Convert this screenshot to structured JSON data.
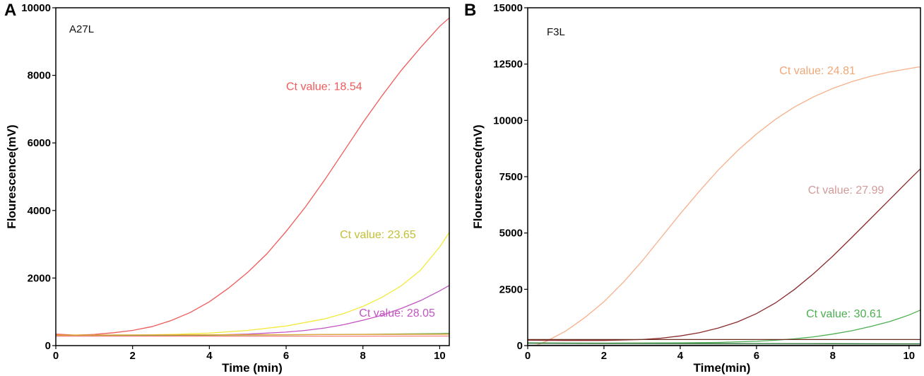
{
  "chart_data": [
    {
      "type": "line",
      "panel_label": "A",
      "tag": "A27L",
      "xlabel": "Time (min)",
      "ylabel": "Flourescence(mV)",
      "xlim": [
        0,
        10.25
      ],
      "ylim": [
        0,
        10000
      ],
      "xticks": [
        0,
        2,
        4,
        6,
        8,
        10
      ],
      "yticks": [
        0,
        2000,
        4000,
        6000,
        8000,
        10000
      ],
      "series": [
        {
          "name": "red",
          "color": "#f05a5a",
          "x": [
            0,
            0.5,
            1,
            1.5,
            2,
            2.5,
            3,
            3.5,
            4,
            4.5,
            5,
            5.5,
            6,
            6.5,
            7,
            7.5,
            8,
            8.5,
            9,
            9.5,
            10,
            10.25
          ],
          "y": [
            340,
            310,
            330,
            380,
            450,
            560,
            740,
            980,
            1300,
            1700,
            2170,
            2720,
            3380,
            4100,
            4900,
            5750,
            6600,
            7400,
            8150,
            8820,
            9450,
            9700
          ]
        },
        {
          "name": "yellow",
          "color": "#f2ea3c",
          "x": [
            0,
            1,
            2,
            3,
            4,
            5,
            6,
            7,
            7.5,
            8,
            8.5,
            9,
            9.5,
            10,
            10.25
          ],
          "y": [
            300,
            300,
            310,
            330,
            370,
            450,
            580,
            790,
            950,
            1160,
            1430,
            1770,
            2230,
            2920,
            3350
          ]
        },
        {
          "name": "purple",
          "color": "#c354c3",
          "x": [
            0,
            2,
            3,
            4,
            5,
            5.5,
            6,
            6.5,
            7,
            7.5,
            8,
            8.5,
            9,
            9.5,
            10,
            10.25
          ],
          "y": [
            290,
            290,
            300,
            310,
            340,
            370,
            400,
            450,
            520,
            620,
            750,
            900,
            1100,
            1330,
            1620,
            1780
          ]
        },
        {
          "name": "green",
          "color": "#5cab3c",
          "x": [
            0,
            2,
            4,
            6,
            8,
            10,
            10.25
          ],
          "y": [
            300,
            305,
            310,
            320,
            335,
            355,
            365
          ]
        },
        {
          "name": "orange",
          "color": "#e8a23a",
          "x": [
            0,
            2,
            4,
            6,
            8,
            10,
            10.25
          ],
          "y": [
            310,
            315,
            320,
            325,
            330,
            335,
            335
          ]
        },
        {
          "name": "pink",
          "color": "#f08080",
          "x": [
            0,
            2,
            4,
            6,
            8,
            10,
            10.25
          ],
          "y": [
            280,
            280,
            280,
            280,
            280,
            282,
            282
          ]
        }
      ],
      "annotations": [
        {
          "text": "Ct value: 18.54",
          "color": "#f05a5a",
          "x": 6.0,
          "y": 7560
        },
        {
          "text": "Ct value: 23.65",
          "color": "#c3bf34",
          "x": 7.4,
          "y": 3180
        },
        {
          "text": "Ct value: 28.05",
          "color": "#c354c3",
          "x": 7.9,
          "y": 860
        }
      ]
    },
    {
      "type": "line",
      "panel_label": "B",
      "tag": "F3L",
      "xlabel": "Time(min)",
      "ylabel": "Flourescence(mV)",
      "xlim": [
        0,
        10.3
      ],
      "ylim": [
        0,
        15000
      ],
      "xticks": [
        0,
        2,
        4,
        6,
        8,
        10
      ],
      "yticks": [
        0,
        2500,
        5000,
        7500,
        10000,
        12500,
        15000
      ],
      "series": [
        {
          "name": "salmon",
          "color": "#f7b08a",
          "x": [
            0.2,
            0.5,
            1,
            1.5,
            2,
            2.5,
            3,
            3.5,
            4,
            4.5,
            5,
            5.5,
            6,
            6.5,
            7,
            7.5,
            8,
            8.5,
            9,
            9.5,
            10,
            10.3
          ],
          "y": [
            0,
            200,
            650,
            1250,
            1950,
            2800,
            3750,
            4800,
            5850,
            6850,
            7800,
            8650,
            9400,
            10050,
            10600,
            11050,
            11420,
            11720,
            11960,
            12150,
            12300,
            12380
          ]
        },
        {
          "name": "maroon",
          "color": "#8b2a2a",
          "x": [
            0,
            1,
            2,
            3,
            3.5,
            4,
            4.5,
            5,
            5.5,
            6,
            6.5,
            7,
            7.5,
            8,
            8.5,
            9,
            9.5,
            10,
            10.3
          ],
          "y": [
            240,
            230,
            230,
            270,
            330,
            430,
            570,
            780,
            1050,
            1420,
            1900,
            2500,
            3200,
            3970,
            4800,
            5650,
            6500,
            7350,
            7850
          ]
        },
        {
          "name": "green",
          "color": "#4caf50",
          "x": [
            0,
            2,
            4,
            5,
            6,
            6.5,
            7,
            7.5,
            8,
            8.5,
            9,
            9.5,
            10,
            10.3
          ],
          "y": [
            120,
            110,
            120,
            140,
            190,
            240,
            300,
            390,
            510,
            660,
            850,
            1070,
            1360,
            1580
          ]
        },
        {
          "name": "brown-flat",
          "color": "#6b2d1f",
          "x": [
            0,
            2,
            4,
            6,
            8,
            10,
            10.3
          ],
          "y": [
            270,
            270,
            270,
            270,
            270,
            270,
            270
          ]
        },
        {
          "name": "dark-green-flat",
          "color": "#1e6b2a",
          "x": [
            0,
            2,
            4,
            6,
            8,
            10,
            10.3
          ],
          "y": [
            110,
            100,
            95,
            90,
            85,
            80,
            80
          ]
        },
        {
          "name": "gray-flat",
          "color": "#555555",
          "x": [
            0,
            2,
            4,
            6,
            8,
            10,
            10.3
          ],
          "y": [
            20,
            20,
            20,
            20,
            20,
            20,
            20
          ]
        }
      ],
      "annotations": [
        {
          "text": "Ct value: 24.81",
          "color": "#f0a878",
          "x": 6.6,
          "y": 12050
        },
        {
          "text": "Ct value: 27.99",
          "color": "#d49a9a",
          "x": 7.35,
          "y": 6750
        },
        {
          "text": "Ct value: 30.61",
          "color": "#4caf50",
          "x": 7.3,
          "y": 1250
        }
      ]
    }
  ]
}
